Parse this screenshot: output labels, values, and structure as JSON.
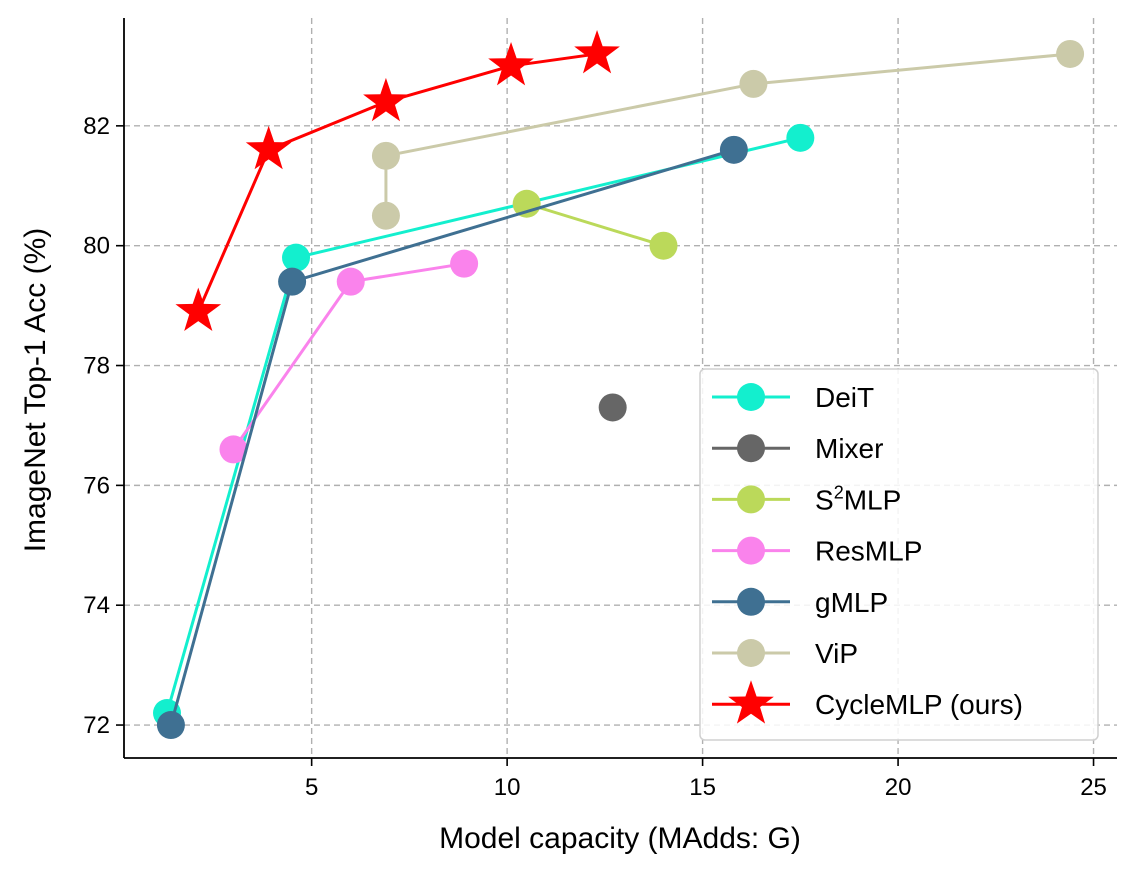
{
  "chart_data": {
    "type": "line",
    "title": "",
    "xlabel": "Model capacity (MAdds: G)",
    "ylabel": "ImageNet Top-1 Acc (%)",
    "xlim": [
      0.2,
      25.6
    ],
    "ylim": [
      71.45,
      83.8
    ],
    "xticks": [
      5,
      10,
      15,
      20,
      25
    ],
    "yticks": [
      72,
      74,
      76,
      78,
      80,
      82
    ],
    "grid": true,
    "legend_position": "bottom-right",
    "series": [
      {
        "name": "DeiT",
        "label": "DeiT",
        "color": "#13EFCE",
        "marker": "circle",
        "x": [
          1.3,
          4.6,
          17.5
        ],
        "y": [
          72.2,
          79.8,
          81.8
        ]
      },
      {
        "name": "Mixer",
        "label": "Mixer",
        "color": "#666666",
        "marker": "circle",
        "x": [
          12.7
        ],
        "y": [
          77.3
        ]
      },
      {
        "name": "S2MLP",
        "label_base": "S",
        "label_sup": "2",
        "label_rest": "MLP",
        "color": "#BBD95A",
        "marker": "circle",
        "x": [
          10.5,
          14.0
        ],
        "y": [
          80.7,
          80.0
        ]
      },
      {
        "name": "ResMLP",
        "label": "ResMLP",
        "color": "#FA83EC",
        "marker": "circle",
        "x": [
          3.0,
          6.0,
          8.9
        ],
        "y": [
          76.6,
          79.4,
          79.7
        ]
      },
      {
        "name": "gMLP",
        "label": "gMLP",
        "color": "#3F7092",
        "marker": "circle",
        "x": [
          1.4,
          4.5,
          15.8
        ],
        "y": [
          72.0,
          79.4,
          81.6
        ]
      },
      {
        "name": "ViP",
        "label": "ViP",
        "color": "#CBCAA9",
        "marker": "circle",
        "x": [
          6.9,
          6.9,
          16.3,
          24.4
        ],
        "y": [
          80.5,
          81.5,
          82.7,
          83.2
        ]
      },
      {
        "name": "CycleMLP (ours)",
        "label": "CycleMLP (ours)",
        "color": "#FF0000",
        "marker": "star",
        "x": [
          2.1,
          3.9,
          6.9,
          10.1,
          12.3
        ],
        "y": [
          78.9,
          81.6,
          82.4,
          83.0,
          83.2
        ]
      }
    ]
  }
}
